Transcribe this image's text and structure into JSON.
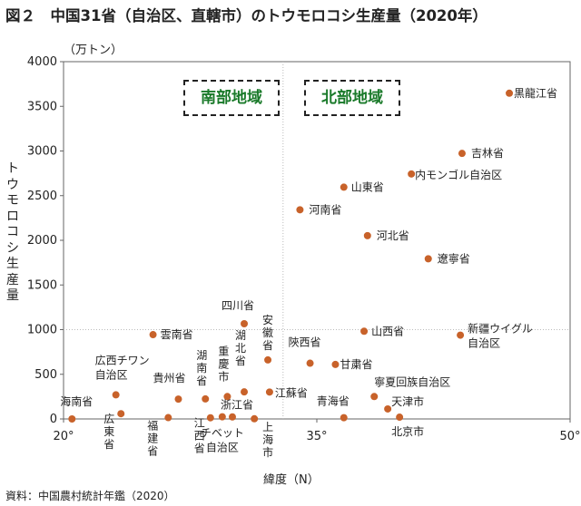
{
  "title": "図２　中国31省（自治区、直轄市）のトウモロコシ生産量（2020年）",
  "unit": "（万トン）",
  "ylabel_chars": [
    "ト",
    "ウ",
    "モ",
    "ロ",
    "コ",
    "シ",
    "生",
    "産",
    "量"
  ],
  "xlabel": "緯度（N）",
  "source": "資料：中国農村統計年鑑（2020）",
  "regions": {
    "south": "南部地域",
    "north": "北部地域"
  },
  "colors": {
    "point": "#c8622a",
    "axis": "#666666",
    "divider": "#bbbbbb"
  },
  "chart_data": {
    "type": "scatter",
    "xlim": [
      20,
      50
    ],
    "ylim": [
      0,
      4000
    ],
    "xticks": [
      {
        "v": 20,
        "label": "20°"
      },
      {
        "v": 35,
        "label": "35°"
      },
      {
        "v": 50,
        "label": "50°"
      }
    ],
    "yticks": [
      0,
      500,
      1000,
      1500,
      2000,
      2500,
      3000,
      3500,
      4000
    ],
    "dividers": {
      "x": 33,
      "y": 1000
    },
    "points": [
      {
        "label": "黒龍江省",
        "x": 46.4,
        "y": 3647
      },
      {
        "label": "吉林省",
        "x": 43.6,
        "y": 2973
      },
      {
        "label": "内モンゴル自治区",
        "x": 40.6,
        "y": 2743
      },
      {
        "label": "山東省",
        "x": 36.6,
        "y": 2595
      },
      {
        "label": "河南省",
        "x": 34.0,
        "y": 2342
      },
      {
        "label": "河北省",
        "x": 38.0,
        "y": 2052
      },
      {
        "label": "遼寧省",
        "x": 41.6,
        "y": 1793
      },
      {
        "label": "山西省",
        "x": 37.8,
        "y": 982
      },
      {
        "label": "新疆ウイグル自治区",
        "x": 43.5,
        "y": 938
      },
      {
        "label": "雲南省",
        "x": 25.3,
        "y": 944
      },
      {
        "label": "四川省",
        "x": 30.7,
        "y": 1066
      },
      {
        "label": "安徽省",
        "x": 32.1,
        "y": 661
      },
      {
        "label": "陝西省",
        "x": 34.6,
        "y": 624
      },
      {
        "label": "甘粛省",
        "x": 36.1,
        "y": 610
      },
      {
        "label": "広西チワン自治区",
        "x": 23.1,
        "y": 270
      },
      {
        "label": "貴州省",
        "x": 26.8,
        "y": 222
      },
      {
        "label": "湖南省",
        "x": 28.4,
        "y": 224
      },
      {
        "label": "重慶市",
        "x": 29.7,
        "y": 251
      },
      {
        "label": "湖北省",
        "x": 30.7,
        "y": 303
      },
      {
        "label": "江蘇省",
        "x": 32.2,
        "y": 301
      },
      {
        "label": "寧夏回族自治区",
        "x": 38.4,
        "y": 251
      },
      {
        "label": "天津市",
        "x": 39.2,
        "y": 112
      },
      {
        "label": "海南省",
        "x": 20.5,
        "y": 0
      },
      {
        "label": "広東省",
        "x": 23.4,
        "y": 59
      },
      {
        "label": "福建省",
        "x": 26.2,
        "y": 15
      },
      {
        "label": "江西省",
        "x": 28.7,
        "y": 13
      },
      {
        "label": "チベット自治区",
        "x": 29.4,
        "y": 24
      },
      {
        "label": "浙江省",
        "x": 30.0,
        "y": 23
      },
      {
        "label": "上海市",
        "x": 31.3,
        "y": 2
      },
      {
        "label": "青海省",
        "x": 36.6,
        "y": 14
      },
      {
        "label": "北京市",
        "x": 39.9,
        "y": 20
      }
    ]
  }
}
